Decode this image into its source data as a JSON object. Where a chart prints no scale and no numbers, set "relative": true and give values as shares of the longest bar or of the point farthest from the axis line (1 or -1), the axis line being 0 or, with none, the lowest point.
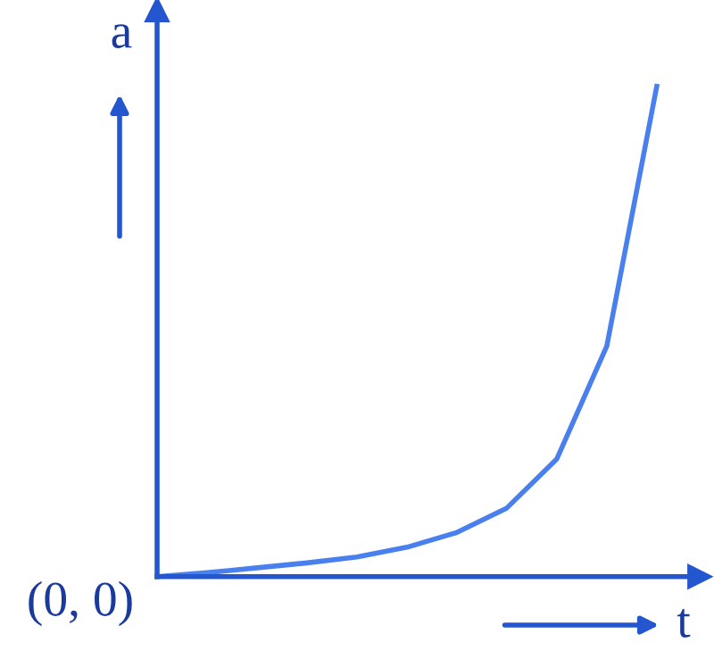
{
  "chart_data": {
    "type": "line",
    "xlabel": "t",
    "ylabel": "a",
    "relative": true,
    "grid": false,
    "legend": false,
    "marker": "none",
    "line_style": "solid",
    "categories": [
      null,
      null,
      null,
      null,
      null,
      null,
      null,
      null,
      null,
      null,
      null
    ],
    "series": [
      {
        "color": "#4a80ee",
        "values": [
          0,
          0.008,
          0.018,
          0.028,
          0.04,
          0.06,
          0.09,
          0.14,
          0.24,
          0.47,
          1.0
        ]
      }
    ],
    "annotations": [
      "(0, 0)"
    ]
  }
}
